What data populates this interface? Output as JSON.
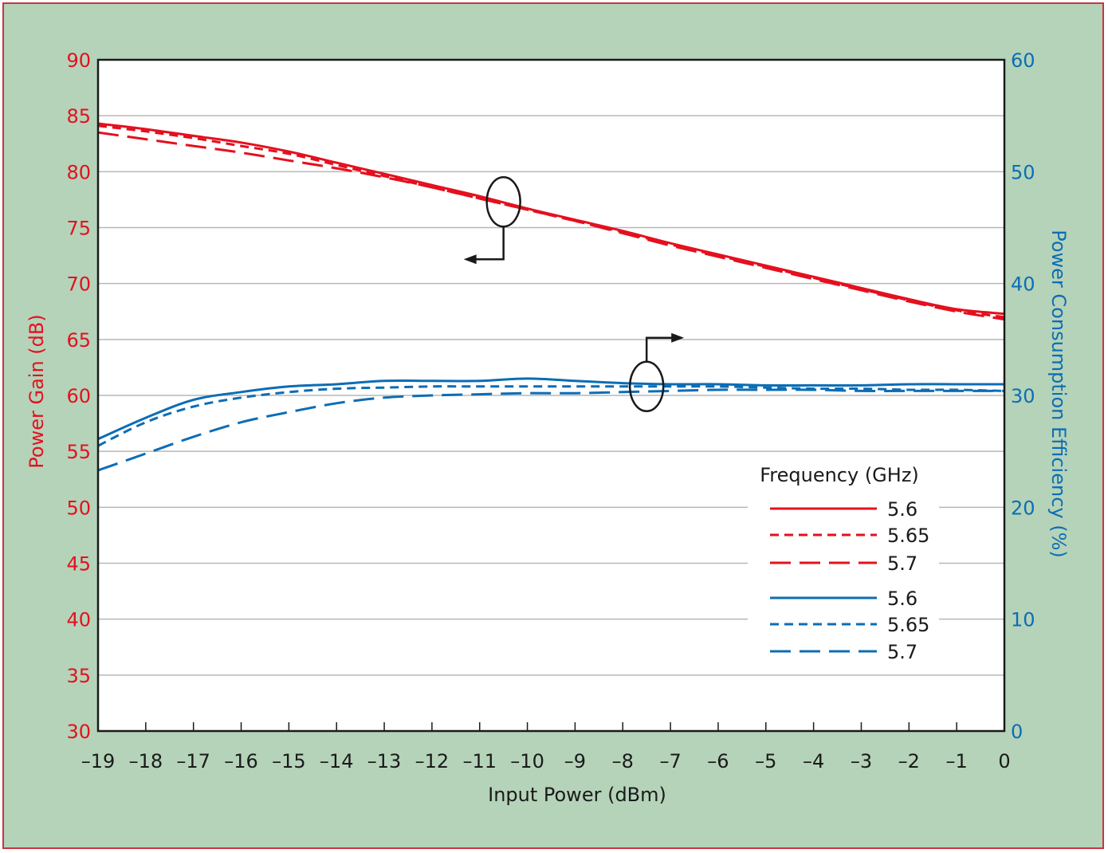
{
  "colors": {
    "frame_bg": "#b5d3b9",
    "frame_border": "#cc3340",
    "plot_bg": "#ffffff",
    "grid": "#b7b7b7",
    "red": "#e4101f",
    "blue": "#0c6db5",
    "black": "#1a1a1a"
  },
  "chart_data": {
    "type": "line",
    "xlabel": "Input Power (dBm)",
    "ylabel_left": "Power Gain (dB)",
    "ylabel_right": "Power Consumption Efficiency (%)",
    "xlim": [
      -19,
      0
    ],
    "ylim_left": [
      30,
      90
    ],
    "ylim_right": [
      0,
      60
    ],
    "x_ticks": [
      -19,
      -18,
      -17,
      -16,
      -15,
      -14,
      -13,
      -12,
      -11,
      -10,
      -9,
      -8,
      -7,
      -6,
      -5,
      -4,
      -3,
      -2,
      -1,
      0
    ],
    "x_tick_labels": [
      "–19",
      "–18",
      "–17",
      "–16",
      "–15",
      "–14",
      "–13",
      "–12",
      "–11",
      "–10",
      "–9",
      "–8",
      "–7",
      "–6",
      "–5",
      "–4",
      "–3",
      "–2",
      "–1",
      "0"
    ],
    "y_left_ticks": [
      90,
      85,
      80,
      75,
      70,
      65,
      60,
      55,
      50,
      45,
      40,
      35,
      30
    ],
    "y_right_ticks": [
      60,
      50,
      40,
      30,
      20,
      10,
      0
    ],
    "grid": true,
    "legend": {
      "title": "Frequency (GHz)",
      "placement": "lower-right",
      "entries": [
        {
          "label": "5.6",
          "color": "red",
          "dash": "solid"
        },
        {
          "label": "5.65",
          "color": "red",
          "dash": "short"
        },
        {
          "label": "5.7",
          "color": "red",
          "dash": "long"
        },
        {
          "label": "5.6",
          "color": "blue",
          "dash": "solid"
        },
        {
          "label": "5.65",
          "color": "blue",
          "dash": "short"
        },
        {
          "label": "5.7",
          "color": "blue",
          "dash": "long"
        }
      ]
    },
    "x": [
      -19,
      -18,
      -17,
      -16,
      -15,
      -14,
      -13,
      -12,
      -11,
      -10,
      -9,
      -8,
      -7,
      -6,
      -5,
      -4,
      -3,
      -2,
      -1,
      0
    ],
    "series": [
      {
        "name": "5.6",
        "axis": "left",
        "color": "red",
        "dash": "solid",
        "values": [
          84.3,
          83.8,
          83.2,
          82.6,
          81.8,
          80.8,
          79.8,
          78.8,
          77.8,
          76.7,
          75.7,
          74.7,
          73.6,
          72.6,
          71.6,
          70.6,
          69.6,
          68.6,
          67.7,
          67.3
        ]
      },
      {
        "name": "5.65",
        "axis": "left",
        "color": "red",
        "dash": "short",
        "values": [
          84.1,
          83.6,
          83.0,
          82.3,
          81.6,
          80.6,
          79.6,
          78.6,
          77.6,
          76.6,
          75.6,
          74.6,
          73.5,
          72.5,
          71.5,
          70.5,
          69.5,
          68.5,
          67.6,
          67.0
        ]
      },
      {
        "name": "5.7",
        "axis": "left",
        "color": "red",
        "dash": "long",
        "values": [
          83.5,
          82.9,
          82.3,
          81.7,
          81.0,
          80.3,
          79.5,
          78.6,
          77.6,
          76.6,
          75.6,
          74.5,
          73.4,
          72.4,
          71.4,
          70.4,
          69.4,
          68.4,
          67.5,
          66.8
        ]
      },
      {
        "name": "5.6",
        "axis": "right",
        "color": "blue",
        "dash": "solid",
        "values": [
          26.1,
          28.0,
          29.6,
          30.3,
          30.8,
          31.0,
          31.3,
          31.3,
          31.3,
          31.5,
          31.3,
          31.1,
          31.0,
          31.0,
          30.9,
          30.9,
          30.9,
          31.0,
          31.0,
          31.0
        ]
      },
      {
        "name": "5.65",
        "axis": "right",
        "color": "blue",
        "dash": "short",
        "values": [
          25.5,
          27.6,
          29.0,
          29.8,
          30.3,
          30.6,
          30.7,
          30.8,
          30.8,
          30.8,
          30.8,
          30.8,
          30.8,
          30.8,
          30.7,
          30.6,
          30.6,
          30.5,
          30.5,
          30.4
        ]
      },
      {
        "name": "5.7",
        "axis": "right",
        "color": "blue",
        "dash": "long",
        "values": [
          23.3,
          24.8,
          26.3,
          27.6,
          28.5,
          29.3,
          29.8,
          30.0,
          30.1,
          30.2,
          30.2,
          30.3,
          30.4,
          30.5,
          30.5,
          30.5,
          30.4,
          30.4,
          30.4,
          30.4
        ]
      }
    ],
    "annotations": [
      {
        "type": "group-marker",
        "group": "gain",
        "x": -10.5,
        "y_axis": "left",
        "y": 77.3,
        "arrow_direction": "left"
      },
      {
        "type": "group-marker",
        "group": "efficiency",
        "x": -7.5,
        "y_axis": "right",
        "y": 30.8,
        "arrow_direction": "right"
      }
    ]
  }
}
